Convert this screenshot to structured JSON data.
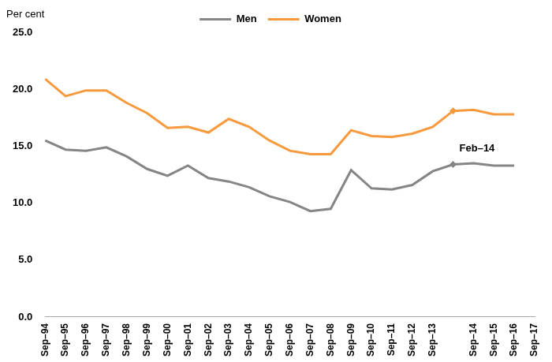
{
  "chart_data": {
    "type": "line",
    "y_label": "Per cent",
    "annotation": "Feb–14",
    "categories": [
      "Sep–94",
      "Sep–95",
      "Sep–96",
      "Sep–97",
      "Sep–98",
      "Sep–99",
      "Sep–00",
      "Sep–01",
      "Sep–02",
      "Sep–03",
      "Sep–04",
      "Sep–05",
      "Sep–06",
      "Sep–07",
      "Sep–08",
      "Sep–09",
      "Sep–10",
      "Sep–11",
      "Sep–12",
      "Sep–13",
      null,
      "Sep–14",
      "Sep–15",
      "Sep–16",
      "Sep–17"
    ],
    "series": [
      {
        "name": "Men",
        "color": "#858585",
        "marker": "diamond",
        "values": [
          15.5,
          14.7,
          14.6,
          14.9,
          14.1,
          13.0,
          12.4,
          13.3,
          12.2,
          11.9,
          11.4,
          10.6,
          10.1,
          9.3,
          9.5,
          12.9,
          11.3,
          11.2,
          11.6,
          12.8,
          13.4,
          13.5,
          13.3,
          13.3,
          null
        ]
      },
      {
        "name": "Women",
        "color": "#f79a3e",
        "marker": "diamond",
        "values": [
          20.9,
          19.4,
          19.9,
          19.9,
          18.8,
          17.9,
          16.6,
          16.7,
          16.2,
          17.4,
          16.7,
          15.5,
          14.6,
          14.3,
          14.3,
          16.4,
          15.9,
          15.8,
          16.1,
          16.7,
          18.1,
          18.2,
          17.8,
          17.8,
          null
        ]
      }
    ],
    "ylim": [
      0,
      25
    ],
    "yticks": [
      {
        "value": 0,
        "label": "0.0"
      },
      {
        "value": 5,
        "label": "5.0"
      },
      {
        "value": 10,
        "label": "10.0"
      },
      {
        "value": 15,
        "label": "15.0"
      },
      {
        "value": 20,
        "label": "20.0"
      },
      {
        "value": 25,
        "label": "25.0"
      }
    ],
    "grid": false,
    "legend": "top"
  }
}
